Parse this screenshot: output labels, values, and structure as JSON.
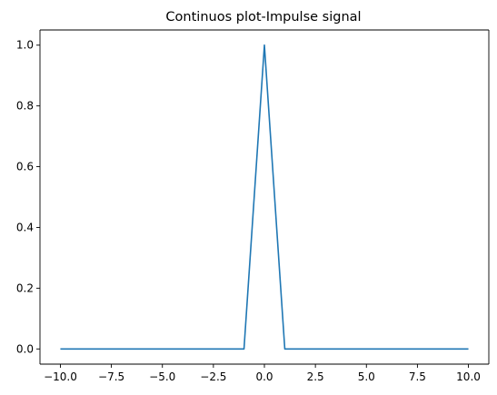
{
  "chart_data": {
    "type": "line",
    "title": "Continuos plot-Impulse signal",
    "xlabel": "",
    "ylabel": "",
    "xlim": [
      -11.0,
      11.0
    ],
    "ylim": [
      -0.05,
      1.05
    ],
    "x_ticks": [
      -10.0,
      -7.5,
      -5.0,
      -2.5,
      0.0,
      2.5,
      5.0,
      7.5,
      10.0
    ],
    "x_tick_labels": [
      "−10.0",
      "−7.5",
      "−5.0",
      "−2.5",
      "0.0",
      "2.5",
      "5.0",
      "7.5",
      "10.0"
    ],
    "y_ticks": [
      0.0,
      0.2,
      0.4,
      0.6,
      0.8,
      1.0
    ],
    "y_tick_labels": [
      "0.0",
      "0.2",
      "0.4",
      "0.6",
      "0.8",
      "1.0"
    ],
    "grid": false,
    "series": [
      {
        "color": "#1f77b4",
        "x": [
          -10,
          -9,
          -8,
          -7,
          -6,
          -5,
          -4,
          -3,
          -2,
          -1,
          0,
          1,
          2,
          3,
          4,
          5,
          6,
          7,
          8,
          9,
          10
        ],
        "y": [
          0,
          0,
          0,
          0,
          0,
          0,
          0,
          0,
          0,
          0,
          1,
          0,
          0,
          0,
          0,
          0,
          0,
          0,
          0,
          0,
          0
        ]
      }
    ]
  }
}
